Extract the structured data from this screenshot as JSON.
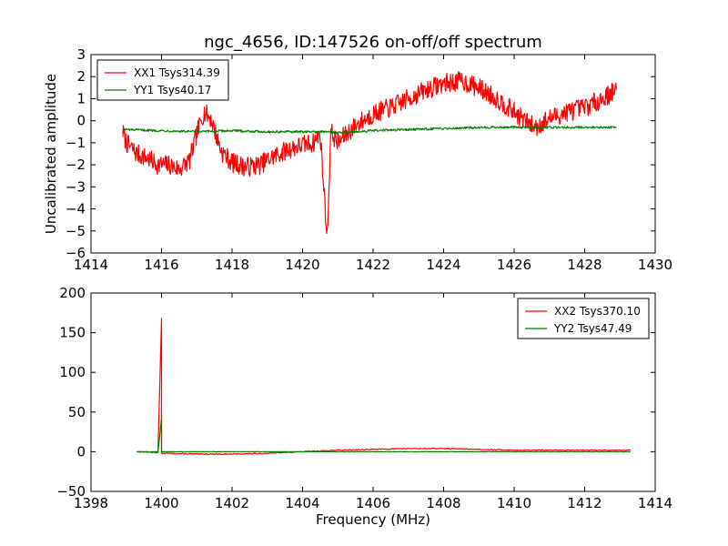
{
  "chart_data": [
    {
      "type": "line",
      "title": "ngc_4656, ID:147526 on-off/off spectrum",
      "xlabel": "",
      "ylabel": "Uncalibrated amplitude",
      "xlim": [
        1414,
        1430
      ],
      "ylim": [
        -6,
        3
      ],
      "x_ticks": [
        "1414",
        "1416",
        "1418",
        "1420",
        "1422",
        "1424",
        "1426",
        "1428",
        "1430"
      ],
      "y_ticks": [
        "3",
        "2",
        "1",
        "0",
        "−1",
        "−2",
        "−3",
        "−4",
        "−5",
        "−6"
      ],
      "x_tick_values": [
        1414,
        1416,
        1418,
        1420,
        1422,
        1424,
        1426,
        1428,
        1430
      ],
      "y_tick_values": [
        3,
        2,
        1,
        0,
        -1,
        -2,
        -3,
        -4,
        -5,
        -6
      ],
      "legend_position": "top-left",
      "grid": false,
      "series": [
        {
          "name": "XX1 Tsys314.39",
          "color": "#ff0000",
          "x": [
            1414.9,
            1415.0,
            1415.3,
            1415.6,
            1415.9,
            1416.2,
            1416.5,
            1416.8,
            1417.0,
            1417.2,
            1417.4,
            1417.7,
            1418.0,
            1418.4,
            1418.8,
            1419.2,
            1419.6,
            1420.0,
            1420.3,
            1420.5,
            1420.6,
            1420.7,
            1420.8,
            1421.0,
            1421.3,
            1421.6,
            1422.0,
            1422.5,
            1423.0,
            1423.5,
            1424.0,
            1424.5,
            1425.0,
            1425.5,
            1426.0,
            1426.3,
            1426.6,
            1427.0,
            1427.5,
            1428.0,
            1428.5,
            1428.9
          ],
          "y": [
            -0.5,
            -1.0,
            -1.5,
            -1.7,
            -2.0,
            -2.0,
            -2.2,
            -1.8,
            -0.6,
            0.4,
            0.1,
            -1.4,
            -1.9,
            -2.1,
            -2.0,
            -1.6,
            -1.3,
            -1.1,
            -1.0,
            -0.6,
            -3.0,
            -5.3,
            -0.5,
            -1.0,
            -0.5,
            -0.1,
            0.3,
            0.6,
            1.0,
            1.4,
            1.7,
            1.8,
            1.5,
            1.0,
            0.4,
            0.0,
            -0.3,
            0.1,
            0.4,
            0.6,
            1.0,
            1.4
          ]
        },
        {
          "name": "YY1 Tsys40.17",
          "color": "#008000",
          "x": [
            1414.9,
            1416.0,
            1417.0,
            1418.0,
            1419.0,
            1420.0,
            1420.7,
            1421.0,
            1422.0,
            1423.0,
            1424.0,
            1425.0,
            1426.0,
            1427.0,
            1428.0,
            1428.9
          ],
          "y": [
            -0.4,
            -0.45,
            -0.5,
            -0.45,
            -0.5,
            -0.5,
            -0.5,
            -0.55,
            -0.45,
            -0.4,
            -0.35,
            -0.3,
            -0.3,
            -0.3,
            -0.3,
            -0.3
          ]
        }
      ]
    },
    {
      "type": "line",
      "title": "",
      "xlabel": "Frequency (MHz)",
      "ylabel": "",
      "xlim": [
        1398,
        1414
      ],
      "ylim": [
        -50,
        200
      ],
      "x_ticks": [
        "1398",
        "1400",
        "1402",
        "1404",
        "1406",
        "1408",
        "1410",
        "1412",
        "1414"
      ],
      "y_ticks": [
        "200",
        "150",
        "100",
        "50",
        "0",
        "−50"
      ],
      "x_tick_values": [
        1398,
        1400,
        1402,
        1404,
        1406,
        1408,
        1410,
        1412,
        1414
      ],
      "y_tick_values": [
        200,
        150,
        100,
        50,
        0,
        -50
      ],
      "legend_position": "top-right",
      "grid": false,
      "series": [
        {
          "name": "XX2 Tsys370.10",
          "color": "#ff0000",
          "x": [
            1399.3,
            1399.9,
            1400.0,
            1400.0,
            1400.1,
            1401.0,
            1402.0,
            1403.0,
            1404.0,
            1405.0,
            1406.0,
            1407.0,
            1408.0,
            1409.0,
            1410.0,
            1411.0,
            1412.0,
            1413.3
          ],
          "y": [
            0,
            -1,
            168,
            -2,
            -2,
            -3,
            -3,
            -2,
            0,
            2,
            3,
            4,
            4,
            3,
            2,
            2,
            2,
            2
          ]
        },
        {
          "name": "YY2 Tsys47.49",
          "color": "#008000",
          "x": [
            1399.3,
            1399.9,
            1400.0,
            1400.0,
            1400.1,
            1401.0,
            1402.0,
            1404.0,
            1406.0,
            1408.0,
            1410.0,
            1412.0,
            1413.3
          ],
          "y": [
            0,
            0,
            42,
            0,
            0,
            0,
            0,
            0,
            0,
            0,
            0,
            0,
            0
          ]
        }
      ]
    }
  ]
}
